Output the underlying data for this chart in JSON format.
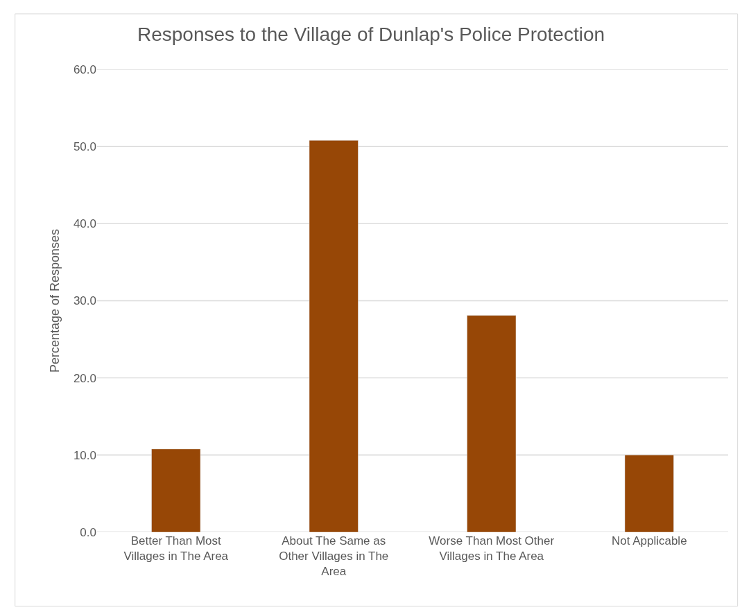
{
  "chart_data": {
    "type": "bar",
    "title": "Responses to the Village of Dunlap's Police Protection",
    "ylabel": "Percentage of Responses",
    "categories": [
      "Better Than Most Villages in The Area",
      "About The Same as Other Villages in The Area",
      "Worse Than Most Other Villages in The Area",
      "Not Applicable"
    ],
    "values": [
      10.8,
      50.8,
      28.1,
      10.0
    ],
    "color": "#974706",
    "ylim": [
      0,
      60
    ],
    "yticks": [
      {
        "value": 0,
        "label": "0.0"
      },
      {
        "value": 10,
        "label": "10.0"
      },
      {
        "value": 20,
        "label": "20.0"
      },
      {
        "value": 30,
        "label": "30.0"
      },
      {
        "value": 40,
        "label": "40.0"
      },
      {
        "value": 50,
        "label": "50.0"
      },
      {
        "value": 60,
        "label": "60.0"
      }
    ],
    "grid": "y"
  }
}
